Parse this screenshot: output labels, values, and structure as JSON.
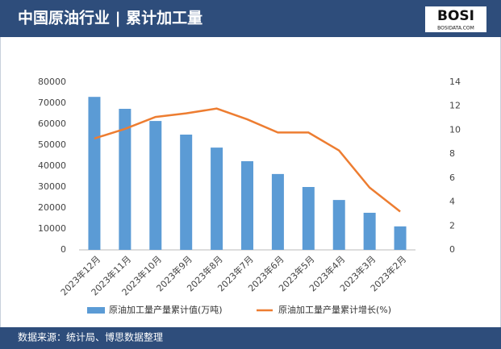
{
  "chart_data": {
    "type": "bar",
    "title": "中国原油行业 | 累计加工量",
    "source": "数据来源：统计局、博思数据整理",
    "logo": "BOSI",
    "logo_sub": "BOSIDATA.COM",
    "categories": [
      "2023年12月",
      "2023年11月",
      "2023年10月",
      "2023年9月",
      "2023年8月",
      "2023年7月",
      "2023年6月",
      "2023年5月",
      "2023年4月",
      "2023年3月",
      "2023年2月"
    ],
    "series": [
      {
        "name": "原油加工量产量累计值(万吨)",
        "type": "bar",
        "color": "#5b9bd5",
        "values": [
          73000,
          67300,
          61500,
          55000,
          48800,
          42300,
          36200,
          30000,
          23800,
          17700,
          11200
        ]
      },
      {
        "name": "原油加工量产量累计增长(%)",
        "type": "line",
        "axis": "y2",
        "color": "#ed7d31",
        "values": [
          9.3,
          10.1,
          11.1,
          11.4,
          11.8,
          10.9,
          9.8,
          9.8,
          8.3,
          5.2,
          3.2
        ]
      }
    ],
    "ylim": [
      0,
      80000
    ],
    "yticks": [
      0,
      10000,
      20000,
      30000,
      40000,
      50000,
      60000,
      70000,
      80000
    ],
    "y2lim": [
      0,
      14
    ],
    "y2ticks": [
      0,
      2,
      4,
      6,
      8,
      10,
      12,
      14
    ],
    "grid": false,
    "legend": "bottom"
  }
}
